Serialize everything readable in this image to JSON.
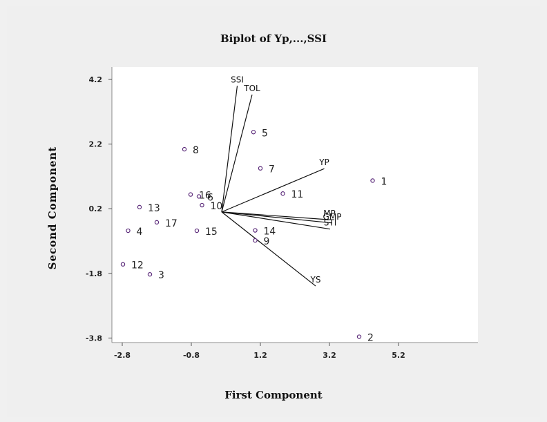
{
  "chart_data": {
    "type": "scatter",
    "title": "Biplot of Yp,...,SSI",
    "xlabel": "First Component",
    "ylabel": "Second Component",
    "xlim": [
      -2.9,
      5.3
    ],
    "ylim": [
      -4.0,
      4.3
    ],
    "xticks": [
      "-2.8",
      "-0.8",
      "1.2",
      "3.2",
      "5.2"
    ],
    "yticks": [
      "4.2",
      "2.2",
      "0.2",
      "-1.8",
      "-3.8"
    ],
    "xtick_values": [
      -2.8,
      -0.8,
      1.2,
      3.2,
      5.2
    ],
    "ytick_values": [
      4.2,
      2.2,
      0.2,
      -1.8,
      -3.8
    ],
    "origin": [
      0.08,
      0.1
    ],
    "vectors": [
      {
        "name": "SSI",
        "x": 0.53,
        "y": 4.0
      },
      {
        "name": "TOL",
        "x": 0.96,
        "y": 3.73
      },
      {
        "name": "YP",
        "x": 3.05,
        "y": 1.44
      },
      {
        "name": "MP",
        "x": 3.2,
        "y": -0.14
      },
      {
        "name": "GMP",
        "x": 3.28,
        "y": -0.24
      },
      {
        "name": "STI",
        "x": 3.22,
        "y": -0.43
      },
      {
        "name": "YS",
        "x": 2.8,
        "y": -2.19
      }
    ],
    "points": [
      {
        "label": "1",
        "x": 4.45,
        "y": 1.07
      },
      {
        "label": "2",
        "x": 4.06,
        "y": -3.76
      },
      {
        "label": "3",
        "x": -2.0,
        "y": -1.83
      },
      {
        "label": "4",
        "x": -2.63,
        "y": -0.48
      },
      {
        "label": "5",
        "x": 1.0,
        "y": 2.57
      },
      {
        "label": "6",
        "x": -0.58,
        "y": 0.58
      },
      {
        "label": "7",
        "x": 1.2,
        "y": 1.45
      },
      {
        "label": "8",
        "x": -1.0,
        "y": 2.04
      },
      {
        "label": "9",
        "x": 1.05,
        "y": -0.78
      },
      {
        "label": "10",
        "x": -0.49,
        "y": 0.31
      },
      {
        "label": "11",
        "x": 1.85,
        "y": 0.67
      },
      {
        "label": "12",
        "x": -2.78,
        "y": -1.52
      },
      {
        "label": "13",
        "x": -2.3,
        "y": 0.25
      },
      {
        "label": "14",
        "x": 1.05,
        "y": -0.47
      },
      {
        "label": "15",
        "x": -0.64,
        "y": -0.48
      },
      {
        "label": "16",
        "x": -0.82,
        "y": 0.64
      },
      {
        "label": "17",
        "x": -1.8,
        "y": -0.22
      }
    ],
    "vector_labels_text": [
      "SSI",
      "TOL",
      "YP",
      "MP",
      "GMP",
      "STI",
      "YS"
    ],
    "grid": false,
    "legend": "none"
  }
}
